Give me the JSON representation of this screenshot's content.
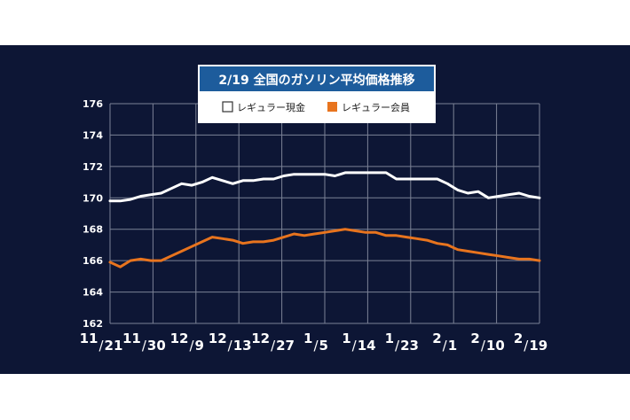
{
  "chart_data": {
    "type": "line",
    "title": "2/19 全国のガソリン平均価格推移",
    "xlabel": "",
    "ylabel": "",
    "ylim": [
      162,
      176
    ],
    "yticks": [
      "176",
      "174",
      "172",
      "170",
      "168",
      "166",
      "164",
      "162"
    ],
    "ytick_values": [
      176,
      174,
      172,
      170,
      168,
      166,
      164,
      162
    ],
    "x_labels": [
      "11/21",
      "11/30",
      "12/9",
      "12/13",
      "12/27",
      "1/5",
      "1/14",
      "1/23",
      "2/1",
      "2/10",
      "2/19"
    ],
    "grid": true,
    "legend_placement": "top",
    "colors": {
      "background": "#0d1635",
      "title_bar": "#1d5c9c",
      "series_white": "#ffffff",
      "series_orange": "#e8741e",
      "grid": "#7b8296"
    },
    "series": [
      {
        "name": "レギュラー現金",
        "color": "#ffffff",
        "values": [
          169.8,
          169.8,
          169.9,
          170.1,
          170.2,
          170.3,
          170.6,
          170.9,
          170.8,
          171.0,
          171.3,
          171.1,
          170.9,
          171.1,
          171.1,
          171.2,
          171.2,
          171.4,
          171.5,
          171.5,
          171.5,
          171.5,
          171.4,
          171.6,
          171.6,
          171.6,
          171.6,
          171.6,
          171.2,
          171.2,
          171.2,
          171.2,
          171.2,
          170.9,
          170.5,
          170.3,
          170.4,
          170.0,
          170.1,
          170.2,
          170.3,
          170.1,
          170.0
        ]
      },
      {
        "name": "レギュラー会員",
        "color": "#e8741e",
        "values": [
          165.9,
          165.6,
          166.0,
          166.1,
          166.0,
          166.0,
          166.3,
          166.6,
          166.9,
          167.2,
          167.5,
          167.4,
          167.3,
          167.1,
          167.2,
          167.2,
          167.3,
          167.5,
          167.7,
          167.6,
          167.7,
          167.8,
          167.9,
          168.0,
          167.9,
          167.8,
          167.8,
          167.6,
          167.6,
          167.5,
          167.4,
          167.3,
          167.1,
          167.0,
          166.7,
          166.6,
          166.5,
          166.4,
          166.3,
          166.2,
          166.1,
          166.1,
          166.0
        ]
      }
    ]
  }
}
